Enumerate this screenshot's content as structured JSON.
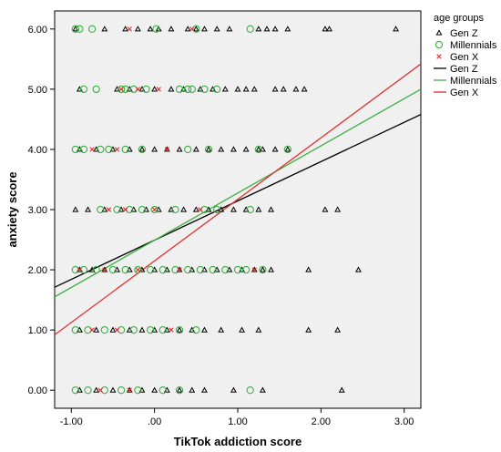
{
  "chart_data": {
    "type": "scatter",
    "title": "",
    "xlabel": "TikTok addiction score",
    "ylabel": "anxiety score",
    "xlim": [
      -1.2,
      3.2
    ],
    "ylim": [
      -0.3,
      6.3
    ],
    "x_ticks": [
      -1.0,
      0.0,
      1.0,
      2.0,
      3.0
    ],
    "x_tick_labels": [
      "-1.00",
      ".00",
      "1.00",
      "2.00",
      "3.00"
    ],
    "y_ticks": [
      0,
      1,
      2,
      3,
      4,
      5,
      6
    ],
    "y_tick_labels": [
      "0.00",
      "1.00",
      "2.00",
      "3.00",
      "4.00",
      "5.00",
      "6.00"
    ],
    "grid": false,
    "legend_title": "age groups",
    "legend_placement": "right",
    "legend": [
      {
        "label": "Gen Z",
        "kind": "marker",
        "marker": "triangle",
        "color": "#000000"
      },
      {
        "label": "Millennials",
        "kind": "marker",
        "marker": "circle",
        "color": "#3cb043"
      },
      {
        "label": "Gen X",
        "kind": "marker",
        "marker": "x",
        "color": "#e03030"
      },
      {
        "label": "Gen Z",
        "kind": "line",
        "color": "#000000"
      },
      {
        "label": "Millennials",
        "kind": "line",
        "color": "#3cb043"
      },
      {
        "label": "Gen X",
        "kind": "line",
        "color": "#e03030"
      }
    ],
    "series": [
      {
        "name": "Gen Z",
        "marker": "triangle",
        "color": "#000000",
        "points": [
          [
            -0.95,
            6
          ],
          [
            -0.6,
            6
          ],
          [
            -0.35,
            6
          ],
          [
            -0.2,
            6
          ],
          [
            -0.05,
            6
          ],
          [
            0.05,
            6
          ],
          [
            0.2,
            6
          ],
          [
            0.4,
            6
          ],
          [
            0.5,
            6
          ],
          [
            0.6,
            6
          ],
          [
            0.75,
            6
          ],
          [
            0.9,
            6
          ],
          [
            1.25,
            6
          ],
          [
            1.35,
            6
          ],
          [
            1.45,
            6
          ],
          [
            1.6,
            6
          ],
          [
            2.05,
            6
          ],
          [
            2.1,
            6
          ],
          [
            2.9,
            6
          ],
          [
            -0.9,
            5
          ],
          [
            -0.45,
            5
          ],
          [
            -0.3,
            5
          ],
          [
            -0.15,
            5
          ],
          [
            0.0,
            5
          ],
          [
            0.2,
            5
          ],
          [
            0.35,
            5
          ],
          [
            0.55,
            5
          ],
          [
            0.7,
            5
          ],
          [
            0.85,
            5
          ],
          [
            1.0,
            5
          ],
          [
            1.1,
            5
          ],
          [
            1.2,
            5
          ],
          [
            1.45,
            5
          ],
          [
            1.55,
            5
          ],
          [
            1.7,
            5
          ],
          [
            1.8,
            5
          ],
          [
            -0.9,
            4
          ],
          [
            -0.7,
            4
          ],
          [
            -0.5,
            4
          ],
          [
            -0.3,
            4
          ],
          [
            -0.15,
            4
          ],
          [
            0.0,
            4
          ],
          [
            0.15,
            4
          ],
          [
            0.3,
            4
          ],
          [
            0.5,
            4
          ],
          [
            0.65,
            4
          ],
          [
            0.8,
            4
          ],
          [
            0.95,
            4
          ],
          [
            1.1,
            4
          ],
          [
            1.25,
            4
          ],
          [
            1.3,
            4
          ],
          [
            1.45,
            4
          ],
          [
            1.6,
            4
          ],
          [
            -0.95,
            3
          ],
          [
            -0.8,
            3
          ],
          [
            -0.6,
            3
          ],
          [
            -0.4,
            3
          ],
          [
            -0.25,
            3
          ],
          [
            -0.1,
            3
          ],
          [
            0.05,
            3
          ],
          [
            0.2,
            3
          ],
          [
            0.35,
            3
          ],
          [
            0.5,
            3
          ],
          [
            0.65,
            3
          ],
          [
            0.8,
            3
          ],
          [
            0.95,
            3
          ],
          [
            1.1,
            3
          ],
          [
            1.25,
            3
          ],
          [
            1.4,
            3
          ],
          [
            2.05,
            3
          ],
          [
            2.2,
            3
          ],
          [
            -0.9,
            2
          ],
          [
            -0.75,
            2
          ],
          [
            -0.6,
            2
          ],
          [
            -0.45,
            2
          ],
          [
            -0.3,
            2
          ],
          [
            -0.15,
            2
          ],
          [
            0.0,
            2
          ],
          [
            0.15,
            2
          ],
          [
            0.3,
            2
          ],
          [
            0.45,
            2
          ],
          [
            0.6,
            2
          ],
          [
            0.75,
            2
          ],
          [
            0.9,
            2
          ],
          [
            1.05,
            2
          ],
          [
            1.2,
            2
          ],
          [
            1.3,
            2
          ],
          [
            1.4,
            2
          ],
          [
            1.85,
            2
          ],
          [
            2.45,
            2
          ],
          [
            -0.9,
            1
          ],
          [
            -0.7,
            1
          ],
          [
            -0.5,
            1
          ],
          [
            -0.3,
            1
          ],
          [
            -0.15,
            1
          ],
          [
            0.0,
            1
          ],
          [
            0.15,
            1
          ],
          [
            0.3,
            1
          ],
          [
            0.45,
            1
          ],
          [
            0.6,
            1
          ],
          [
            0.8,
            1
          ],
          [
            1.05,
            1
          ],
          [
            1.25,
            1
          ],
          [
            1.85,
            1
          ],
          [
            2.2,
            1
          ],
          [
            -0.9,
            0
          ],
          [
            -0.7,
            0
          ],
          [
            -0.5,
            0
          ],
          [
            -0.3,
            0
          ],
          [
            -0.15,
            0
          ],
          [
            0.0,
            0
          ],
          [
            0.15,
            0
          ],
          [
            0.3,
            0
          ],
          [
            0.45,
            0
          ],
          [
            0.6,
            0
          ],
          [
            0.95,
            0
          ],
          [
            1.3,
            0
          ],
          [
            2.25,
            0
          ]
        ]
      },
      {
        "name": "Millennials",
        "marker": "circle",
        "color": "#3cb043",
        "points": [
          [
            -0.95,
            6
          ],
          [
            -0.9,
            6
          ],
          [
            -0.75,
            6
          ],
          [
            0.02,
            6
          ],
          [
            0.5,
            6
          ],
          [
            1.15,
            6
          ],
          [
            -0.85,
            5
          ],
          [
            -0.7,
            5
          ],
          [
            -0.4,
            5
          ],
          [
            -0.35,
            5
          ],
          [
            -0.25,
            5
          ],
          [
            -0.1,
            5
          ],
          [
            0.3,
            5
          ],
          [
            0.4,
            5
          ],
          [
            0.45,
            5
          ],
          [
            0.6,
            5
          ],
          [
            0.75,
            5
          ],
          [
            -0.95,
            4
          ],
          [
            -0.85,
            4
          ],
          [
            -0.65,
            4
          ],
          [
            -0.55,
            4
          ],
          [
            -0.35,
            4
          ],
          [
            -0.15,
            4
          ],
          [
            0.4,
            4
          ],
          [
            0.65,
            4
          ],
          [
            1.25,
            4
          ],
          [
            1.6,
            4
          ],
          [
            -0.65,
            3
          ],
          [
            -0.45,
            3
          ],
          [
            -0.3,
            3
          ],
          [
            -0.15,
            3
          ],
          [
            0.0,
            3
          ],
          [
            0.25,
            3
          ],
          [
            0.6,
            3
          ],
          [
            0.75,
            3
          ],
          [
            1.15,
            3
          ],
          [
            -0.95,
            2
          ],
          [
            -0.85,
            2
          ],
          [
            -0.7,
            2
          ],
          [
            -0.5,
            2
          ],
          [
            -0.35,
            2
          ],
          [
            -0.2,
            2
          ],
          [
            -0.05,
            2
          ],
          [
            0.1,
            2
          ],
          [
            0.25,
            2
          ],
          [
            0.4,
            2
          ],
          [
            0.55,
            2
          ],
          [
            0.7,
            2
          ],
          [
            0.85,
            2
          ],
          [
            1.0,
            2
          ],
          [
            1.1,
            2
          ],
          [
            1.3,
            2
          ],
          [
            -0.95,
            1
          ],
          [
            -0.8,
            1
          ],
          [
            -0.6,
            1
          ],
          [
            -0.4,
            1
          ],
          [
            -0.25,
            1
          ],
          [
            -0.05,
            1
          ],
          [
            0.1,
            1
          ],
          [
            0.3,
            1
          ],
          [
            0.5,
            1
          ],
          [
            -0.95,
            0
          ],
          [
            -0.8,
            0
          ],
          [
            -0.6,
            0
          ],
          [
            -0.4,
            0
          ],
          [
            -0.2,
            0
          ],
          [
            0.1,
            0
          ],
          [
            0.3,
            0
          ],
          [
            1.15,
            0
          ]
        ]
      },
      {
        "name": "Gen X",
        "marker": "x",
        "color": "#e03030",
        "points": [
          [
            -0.3,
            6
          ],
          [
            0.45,
            6
          ],
          [
            -0.4,
            5
          ],
          [
            -0.2,
            5
          ],
          [
            0.05,
            5
          ],
          [
            -0.75,
            4
          ],
          [
            -0.45,
            4
          ],
          [
            0.15,
            4
          ],
          [
            -0.55,
            3
          ],
          [
            -0.35,
            3
          ],
          [
            0.0,
            3
          ],
          [
            0.55,
            3
          ],
          [
            -0.9,
            2
          ],
          [
            -0.6,
            2
          ],
          [
            -0.2,
            2
          ],
          [
            0.3,
            2
          ],
          [
            1.2,
            2
          ],
          [
            -0.75,
            1
          ],
          [
            -0.45,
            1
          ],
          [
            0.2,
            1
          ],
          [
            -0.65,
            0
          ],
          [
            -0.3,
            0
          ]
        ]
      }
    ],
    "fit_lines": [
      {
        "name": "Gen Z",
        "color": "#000000",
        "x": [
          -1.2,
          3.2
        ],
        "y": [
          1.71,
          4.58
        ]
      },
      {
        "name": "Millennials",
        "color": "#3cb043",
        "x": [
          -1.2,
          3.2
        ],
        "y": [
          1.55,
          5.0
        ]
      },
      {
        "name": "Gen X",
        "color": "#e03030",
        "x": [
          -1.2,
          3.2
        ],
        "y": [
          0.92,
          5.42
        ]
      }
    ]
  }
}
